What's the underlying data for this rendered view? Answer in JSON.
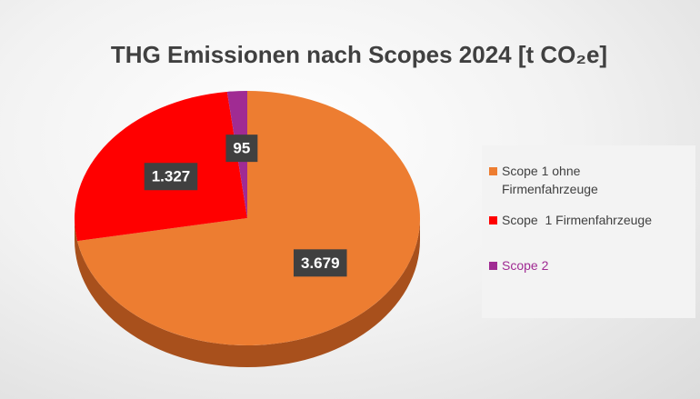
{
  "chart_data": {
    "type": "pie",
    "title": "THG Emissionen nach Scopes 2024 [t CO₂e]",
    "categories": [
      "Scope 1 ohne Firmenfahrzeuge",
      "Scope  1 Firmenfahrzeuge",
      "Scope 2"
    ],
    "values": [
      3679,
      1327,
      95
    ],
    "value_labels": [
      "3.679",
      "1.327",
      "95"
    ],
    "colors": [
      "#ed7d31",
      "#ff0000",
      "#a02b93"
    ],
    "legend": "right"
  }
}
